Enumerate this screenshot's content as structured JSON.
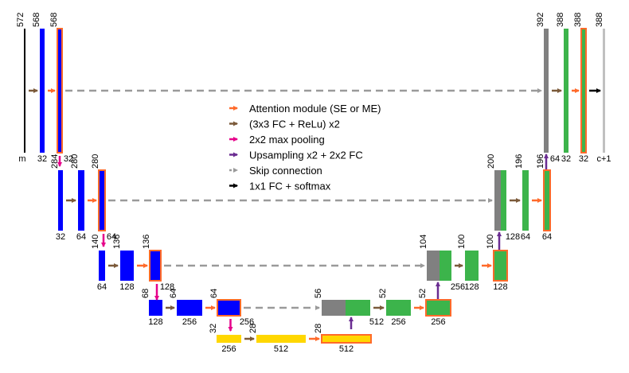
{
  "colors": {
    "encoder": "#0000ff",
    "decoder": "#3cb44b",
    "bottleneck": "#ffd700",
    "skip_copy": "#808080",
    "attention": "#ff6a2a",
    "conv": "#7b5a3a",
    "pool": "#e6008a",
    "upsample": "#6a2c91",
    "skip_arrow": "#9a9a9a",
    "output": "#000000",
    "input": "#000000",
    "output_map": "#c0c0c0"
  },
  "legend": [
    {
      "label": "Attention module (SE or ME)",
      "kind": "attention"
    },
    {
      "label": "(3x3 FC + ReLu) x2",
      "kind": "conv"
    },
    {
      "label": "2x2 max pooling",
      "kind": "pool"
    },
    {
      "label": "Upsampling x2 + 2x2 FC",
      "kind": "upsample"
    },
    {
      "label": "Skip connection",
      "kind": "skip"
    },
    {
      "label": "1x1 FC + softmax",
      "kind": "output"
    }
  ],
  "levels": [
    {
      "encoder": [
        {
          "size": "572",
          "channels": "m",
          "kind": "input"
        },
        {
          "size": "568",
          "channels": "32",
          "kind": "encoder"
        },
        {
          "size": "568",
          "channels": "32",
          "kind": "encoder",
          "attention": true
        }
      ],
      "decoder": [
        {
          "size": "392",
          "channels": "64",
          "kind": "concat"
        },
        {
          "size": "388",
          "channels": "32",
          "kind": "decoder"
        },
        {
          "size": "388",
          "channels": "32",
          "kind": "decoder",
          "attention": true
        },
        {
          "size": "388",
          "channels": "c+1",
          "kind": "output_map"
        }
      ]
    },
    {
      "encoder": [
        {
          "size": "284",
          "channels": "32",
          "kind": "encoder"
        },
        {
          "size": "280",
          "channels": "64",
          "kind": "encoder"
        },
        {
          "size": "280",
          "channels": "64",
          "kind": "encoder",
          "attention": true
        }
      ],
      "decoder": [
        {
          "size": "200",
          "channels": "128",
          "kind": "concat"
        },
        {
          "size": "196",
          "channels": "64",
          "kind": "decoder"
        },
        {
          "size": "196",
          "channels": "64",
          "kind": "decoder",
          "attention": true
        }
      ]
    },
    {
      "encoder": [
        {
          "size": "140",
          "channels": "64",
          "kind": "encoder"
        },
        {
          "size": "136",
          "channels": "128",
          "kind": "encoder"
        },
        {
          "size": "136",
          "channels": "128",
          "kind": "encoder",
          "attention": true
        }
      ],
      "decoder": [
        {
          "size": "104",
          "channels": "256",
          "kind": "concat"
        },
        {
          "size": "100",
          "channels": "128",
          "kind": "decoder"
        },
        {
          "size": "100",
          "channels": "128",
          "kind": "decoder",
          "attention": true
        }
      ]
    },
    {
      "encoder": [
        {
          "size": "68",
          "channels": "128",
          "kind": "encoder"
        },
        {
          "size": "64",
          "channels": "256",
          "kind": "encoder"
        },
        {
          "size": "64",
          "channels": "256",
          "kind": "encoder",
          "attention": true
        }
      ],
      "decoder": [
        {
          "size": "56",
          "channels": "512",
          "kind": "concat"
        },
        {
          "size": "52",
          "channels": "256",
          "kind": "decoder"
        },
        {
          "size": "52",
          "channels": "256",
          "kind": "decoder",
          "attention": true
        }
      ]
    },
    {
      "encoder": [
        {
          "size": "32",
          "channels": "256",
          "kind": "bottleneck"
        },
        {
          "size": "28",
          "channels": "512",
          "kind": "bottleneck"
        },
        {
          "size": "28",
          "channels": "512",
          "kind": "bottleneck",
          "attention": true
        }
      ],
      "decoder": []
    }
  ]
}
